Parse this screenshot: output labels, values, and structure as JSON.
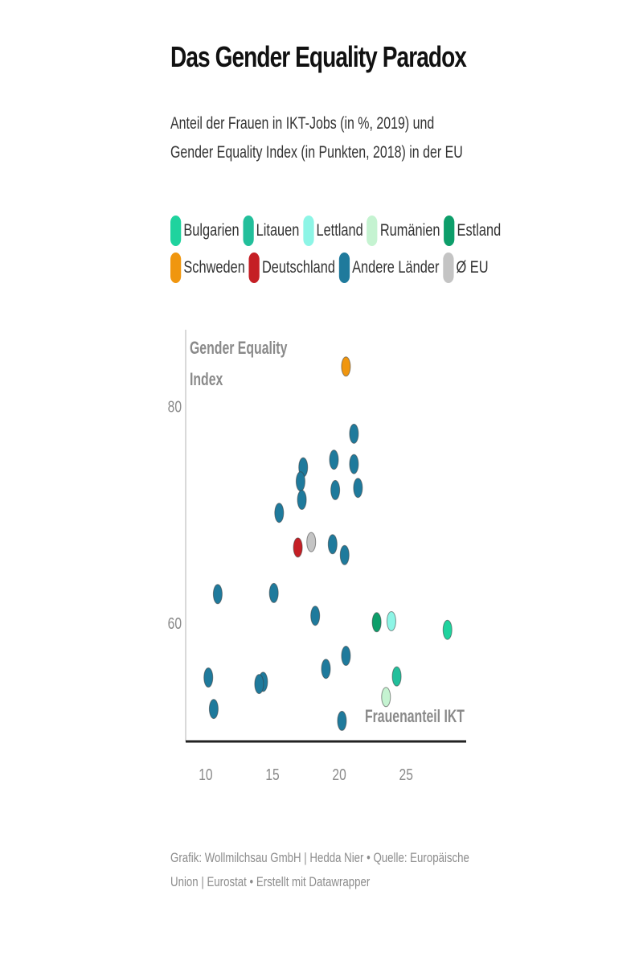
{
  "header": {
    "title": "Das Gender Equality Paradox",
    "subtitle": "Anteil der Frauen in IKT-Jobs (in %, 2019) und Gender Equality Index (in Punkten, 2018) in der EU"
  },
  "legend": [
    {
      "label": "Bulgarien",
      "color": "#1fd39e"
    },
    {
      "label": "Litauen",
      "color": "#22bf9b"
    },
    {
      "label": "Lettland",
      "color": "#8df5e6"
    },
    {
      "label": "Rumänien",
      "color": "#c5f3d1"
    },
    {
      "label": "Estland",
      "color": "#0d9e6a"
    },
    {
      "label": "Schweden",
      "color": "#f0960f"
    },
    {
      "label": "Deutschland",
      "color": "#c51f25"
    },
    {
      "label": "Andere Länder",
      "color": "#1f7a9c"
    },
    {
      "label": "Ø EU",
      "color": "#c4c4c4"
    }
  ],
  "chart_data": {
    "type": "scatter",
    "xlabel": "Frauenanteil IKT",
    "ylabel": "Gender Equality Index",
    "xlim": [
      8.5,
      29.5
    ],
    "ylim": [
      49,
      87
    ],
    "xticks": [
      "10",
      "15",
      "20",
      "25"
    ],
    "yticks": [
      "60",
      "80"
    ],
    "grid": false,
    "legend_position": "top",
    "points": [
      {
        "group": "Schweden",
        "x": 20.5,
        "y": 83.6
      },
      {
        "group": "Andere Länder",
        "x": 21.1,
        "y": 77.4
      },
      {
        "group": "Andere Länder",
        "x": 19.6,
        "y": 75.0
      },
      {
        "group": "Andere Länder",
        "x": 21.1,
        "y": 74.6
      },
      {
        "group": "Andere Länder",
        "x": 17.3,
        "y": 74.3
      },
      {
        "group": "Andere Länder",
        "x": 17.1,
        "y": 73.0
      },
      {
        "group": "Andere Länder",
        "x": 19.7,
        "y": 72.2
      },
      {
        "group": "Andere Länder",
        "x": 21.4,
        "y": 72.4
      },
      {
        "group": "Andere Länder",
        "x": 17.2,
        "y": 71.3
      },
      {
        "group": "Andere Länder",
        "x": 15.5,
        "y": 70.1
      },
      {
        "group": "Ø EU",
        "x": 17.9,
        "y": 67.4
      },
      {
        "group": "Deutschland",
        "x": 16.9,
        "y": 66.9
      },
      {
        "group": "Andere Länder",
        "x": 19.5,
        "y": 67.2
      },
      {
        "group": "Andere Länder",
        "x": 20.4,
        "y": 66.2
      },
      {
        "group": "Andere Länder",
        "x": 10.9,
        "y": 62.6
      },
      {
        "group": "Andere Länder",
        "x": 15.1,
        "y": 62.7
      },
      {
        "group": "Andere Länder",
        "x": 18.2,
        "y": 60.6
      },
      {
        "group": "Estland",
        "x": 22.8,
        "y": 60.0
      },
      {
        "group": "Lettland",
        "x": 23.9,
        "y": 60.1
      },
      {
        "group": "Bulgarien",
        "x": 28.1,
        "y": 59.3
      },
      {
        "group": "Andere Länder",
        "x": 20.5,
        "y": 56.9
      },
      {
        "group": "Andere Länder",
        "x": 19.0,
        "y": 55.7
      },
      {
        "group": "Andere Länder",
        "x": 10.2,
        "y": 54.9
      },
      {
        "group": "Litauen",
        "x": 24.3,
        "y": 55.0
      },
      {
        "group": "Andere Länder",
        "x": 14.3,
        "y": 54.5
      },
      {
        "group": "Andere Länder",
        "x": 14.0,
        "y": 54.3
      },
      {
        "group": "Rumänien",
        "x": 23.5,
        "y": 53.1
      },
      {
        "group": "Andere Länder",
        "x": 10.6,
        "y": 52.0
      },
      {
        "group": "Andere Länder",
        "x": 20.2,
        "y": 50.9
      }
    ]
  },
  "footer": {
    "credit": "Grafik: Wollmilchsau GmbH | Hedda Nier • Quelle: Europäische Union | Eurostat • Erstellt mit Datawrapper"
  }
}
